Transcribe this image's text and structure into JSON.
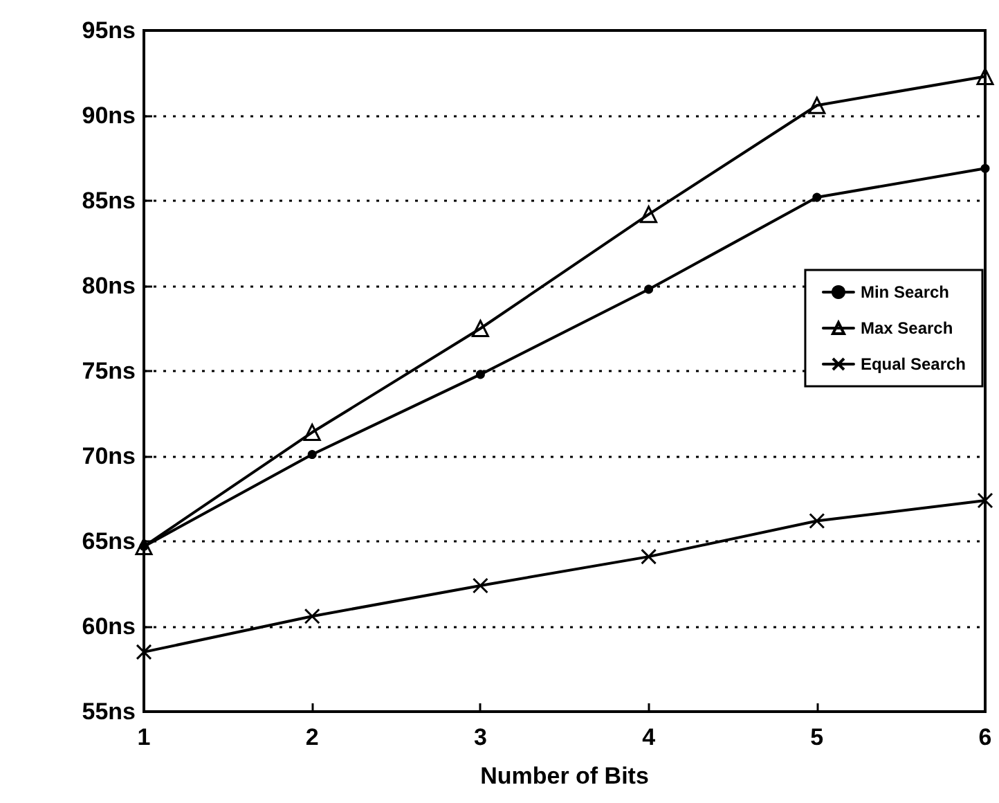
{
  "chart_data": {
    "type": "line",
    "xlabel": "Number of Bits",
    "x": [
      1,
      2,
      3,
      4,
      5,
      6
    ],
    "series": [
      {
        "name": "Min Search",
        "color": "#000000",
        "marker": "circle",
        "values": [
          64.7,
          70.1,
          74.8,
          79.8,
          85.2,
          86.9
        ]
      },
      {
        "name": "Max Search",
        "color": "#000000",
        "marker": "triangle",
        "values": [
          64.7,
          71.4,
          77.5,
          84.2,
          90.6,
          92.3
        ]
      },
      {
        "name": "Equal Search",
        "color": "#000000",
        "marker": "cross",
        "values": [
          58.5,
          60.6,
          62.4,
          64.1,
          66.2,
          67.4
        ]
      }
    ],
    "xlim": [
      1,
      6
    ],
    "xticks": [
      1,
      2,
      3,
      4,
      5,
      6
    ],
    "ylim": [
      55,
      95
    ],
    "yticks": [
      {
        "value": 55,
        "label": "55ns"
      },
      {
        "value": 60,
        "label": "60ns"
      },
      {
        "value": 65,
        "label": "65ns"
      },
      {
        "value": 70,
        "label": "70ns"
      },
      {
        "value": 75,
        "label": "75ns"
      },
      {
        "value": 80,
        "label": "80ns"
      },
      {
        "value": 85,
        "label": "85ns"
      },
      {
        "value": 90,
        "label": "90ns"
      },
      {
        "value": 95,
        "label": "95ns"
      }
    ],
    "grid": "y",
    "legend": "right",
    "line_style": "solid"
  }
}
